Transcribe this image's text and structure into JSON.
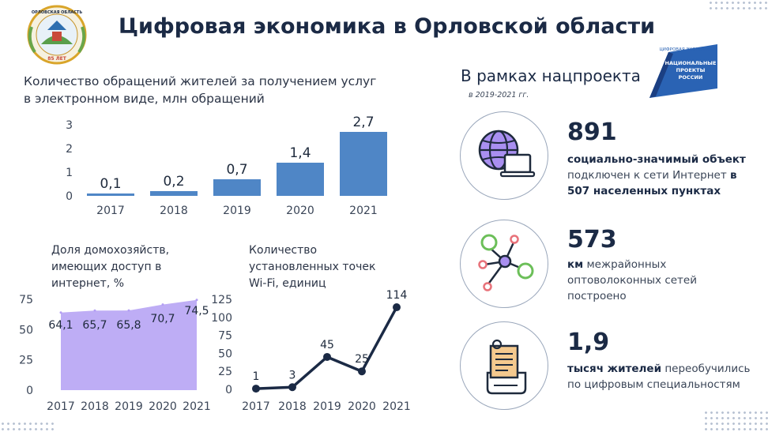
{
  "header": {
    "title": "Цифровая экономика в Орловской области",
    "emblem_top": "ОРЛОВСКАЯ ОБЛАСТЬ",
    "emblem_bottom": "85 ЛЕТ"
  },
  "project": {
    "heading": "В рамках нацпроекта",
    "period": "в 2019-2021 гг.",
    "logo_top": "ЦИФРОВАЯ ЭКОНОМИКА",
    "logo_lines": [
      "НАЦИОНАЛЬНЫЕ",
      "ПРОЕКТЫ",
      "РОССИИ"
    ]
  },
  "stats": [
    {
      "number": "891",
      "bold1": "социально-значимый объект",
      "text1": " подключен к сети Интернет ",
      "bold2": "в 507 населенных пунктах",
      "icon": "globe-laptop-icon"
    },
    {
      "number": "573",
      "bold1": "км",
      "text1": " межрайонных оптоволоконных сетей построено",
      "icon": "network-nodes-icon"
    },
    {
      "number": "1,9",
      "bold1": "тысяч жителей",
      "text1": " переобучились по цифровым специальностям",
      "icon": "document-icon"
    }
  ],
  "chart_data": [
    {
      "type": "bar",
      "title": "Количество обращений жителей за получением услуг в электронном виде, млн обращений",
      "categories": [
        "2017",
        "2018",
        "2019",
        "2020",
        "2021"
      ],
      "values": [
        0.1,
        0.2,
        0.7,
        1.4,
        2.7
      ],
      "value_labels": [
        "0,1",
        "0,2",
        "0,7",
        "1,4",
        "2,7"
      ],
      "yticks": [
        "0",
        "1",
        "2",
        "3"
      ],
      "ylim": [
        0,
        3
      ],
      "color": "#4f86c6",
      "grid": false
    },
    {
      "type": "area",
      "title": "Доля домохозяйств, имеющих доступ в интернет, %",
      "categories": [
        "2017",
        "2018",
        "2019",
        "2020",
        "2021"
      ],
      "values": [
        64.1,
        65.7,
        65.8,
        70.7,
        74.5
      ],
      "value_labels": [
        "64,1",
        "65,7",
        "65,8",
        "70,7",
        "74,5"
      ],
      "yticks": [
        "0",
        "25",
        "50",
        "75"
      ],
      "ylim": [
        0,
        75
      ],
      "color": "#b39ff3",
      "grid": false
    },
    {
      "type": "line",
      "title": "Количество установленных точек Wi-Fi, единиц",
      "categories": [
        "2017",
        "2018",
        "2019",
        "2020",
        "2021"
      ],
      "values": [
        1,
        3,
        45,
        25,
        114
      ],
      "value_labels": [
        "1",
        "3",
        "45",
        "25",
        "114"
      ],
      "yticks": [
        "0",
        "25",
        "50",
        "75",
        "100",
        "125"
      ],
      "ylim": [
        0,
        125
      ],
      "color": "#1b2a45",
      "grid": false
    }
  ]
}
